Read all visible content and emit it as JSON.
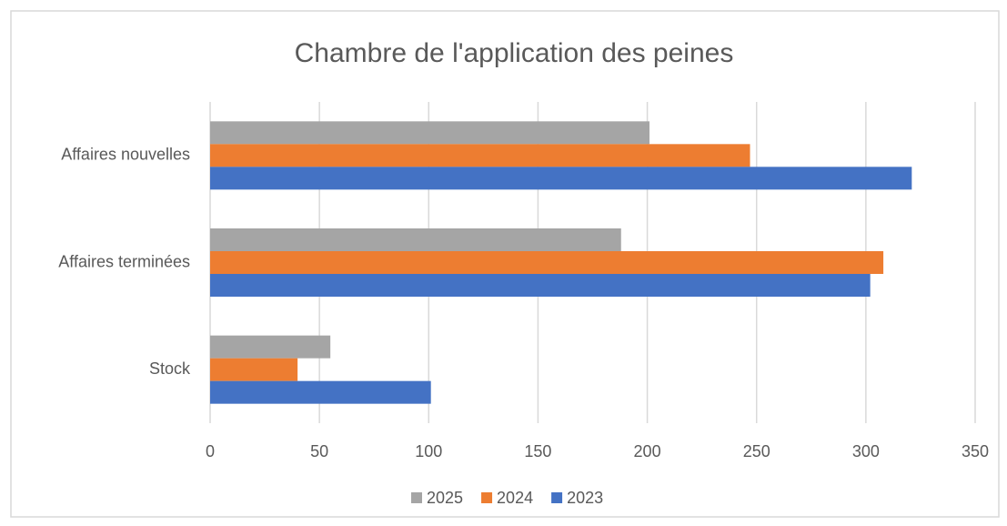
{
  "chart_data": {
    "type": "bar",
    "orientation": "horizontal",
    "title": "Chambre de l'application des peines",
    "categories": [
      "Affaires nouvelles",
      "Affaires terminées",
      "Stock"
    ],
    "series": [
      {
        "name": "2025",
        "color": "#a5a5a5",
        "values": [
          201,
          188,
          55
        ]
      },
      {
        "name": "2024",
        "color": "#ed7d31",
        "values": [
          247,
          308,
          40
        ]
      },
      {
        "name": "2023",
        "color": "#4472c4",
        "values": [
          321,
          302,
          101
        ]
      }
    ],
    "xlim": [
      0,
      350
    ],
    "xticks": [
      0,
      50,
      100,
      150,
      200,
      250,
      300,
      350
    ],
    "grid": true,
    "legend": "bottom"
  }
}
